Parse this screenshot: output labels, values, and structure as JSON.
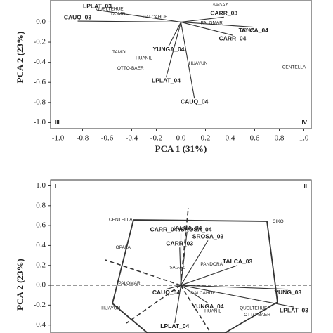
{
  "chart_data": [
    {
      "type": "biplot",
      "xlabel": "PCA 1 (31%)",
      "ylabel": "PCA 2 (23%)",
      "quadrants": [
        "III",
        "IV"
      ],
      "xlim": [
        -1.06,
        1.06
      ],
      "ylim": [
        -1.06,
        0.22
      ],
      "xticks": [
        {
          "value": -1.0,
          "label": "-1.0"
        },
        {
          "value": -0.8,
          "label": "-0.8"
        },
        {
          "value": -0.6,
          "label": "-0.6"
        },
        {
          "value": -0.4,
          "label": "-0.4"
        },
        {
          "value": -0.2,
          "label": "-0.2"
        },
        {
          "value": 0,
          "label": "0.0"
        },
        {
          "value": 0.2,
          "label": "0.2"
        },
        {
          "value": 0.4,
          "label": "0.4"
        },
        {
          "value": 0.6,
          "label": "0.6"
        },
        {
          "value": 0.8,
          "label": "0.8"
        },
        {
          "value": 1.0,
          "label": "1.0"
        }
      ],
      "yticks": [
        {
          "value": 0,
          "label": "0.0"
        },
        -0.2,
        -0.4,
        -0.6,
        -0.8,
        {
          "value": -1.0,
          "label": "-1.0"
        }
      ],
      "vectors": {
        "labels": [
          "LPLAT_03",
          "CAUQ_03",
          "CARR_03",
          "TALCA_04",
          "CARR_04",
          "YUNGA_04",
          "LPLAT_04",
          "CAUQ_04"
        ],
        "x": [
          -0.68,
          -0.84,
          0.35,
          0.59,
          0.42,
          -0.1,
          -0.12,
          0.11
        ],
        "y": [
          0.12,
          0.01,
          0.05,
          -0.05,
          -0.13,
          -0.24,
          -0.55,
          -0.76
        ]
      },
      "points": {
        "labels": [
          "QUELTEHUE",
          "DOMO",
          "DALCAHUE",
          "SAGAZ",
          "PALOMAR",
          "OPALA",
          "TAMOI",
          "HUANIL",
          "HUAYUN",
          "OTTO-BAER",
          "CENTELLA"
        ],
        "x": [
          -0.58,
          -0.51,
          -0.21,
          0.32,
          0.25,
          0.54,
          -0.5,
          -0.3,
          0.14,
          -0.41,
          0.92
        ],
        "y": [
          0.13,
          0.08,
          0.05,
          0.17,
          -0.01,
          -0.08,
          -0.3,
          -0.36,
          -0.41,
          -0.46,
          -0.45
        ]
      }
    },
    {
      "type": "biplot",
      "ylabel": "PCA 2 (23%)",
      "quadrants": [
        "I",
        "II"
      ],
      "xlim": [
        -1.06,
        1.06
      ],
      "ylim": [
        -0.48,
        1.06
      ],
      "yticks": [
        {
          "value": 1.0,
          "label": "1.0"
        },
        0.8,
        0.6,
        0.4,
        0.2,
        {
          "value": 0,
          "label": "0.0"
        },
        -0.2,
        -0.4
      ],
      "vectors": {
        "labels": [
          "TALCA_04",
          "CARR_04 /SROSA_04",
          "SROSA_03",
          "CARR_03",
          "TALCA_03",
          "CAUQ_04",
          "YUNG_03",
          "YUNGA_04",
          "LPLAT_03",
          "LPLAT_04"
        ],
        "x": [
          0.05,
          0.0,
          0.22,
          -0.01,
          0.46,
          -0.12,
          0.87,
          0.22,
          0.92,
          -0.05
        ],
        "y": [
          0.54,
          0.52,
          0.45,
          0.38,
          0.2,
          -0.04,
          -0.04,
          -0.18,
          -0.22,
          -0.38
        ]
      },
      "points": {
        "labels": [
          "CENTELLA",
          "CIKO",
          "OPALA",
          "PALOMAR",
          "SAGAZ",
          "PANDORA",
          "DALCAHUE",
          "QUELTEHUE",
          "HUANIL",
          "HUAYUN",
          "OTTO-BAER"
        ],
        "x": [
          -0.49,
          0.79,
          -0.47,
          -0.42,
          -0.03,
          0.25,
          0.18,
          0.59,
          0.26,
          -0.57,
          0.62
        ],
        "y": [
          0.66,
          0.64,
          0.38,
          0.02,
          0.18,
          0.21,
          -0.08,
          -0.23,
          -0.26,
          -0.23,
          -0.3
        ]
      }
    }
  ]
}
